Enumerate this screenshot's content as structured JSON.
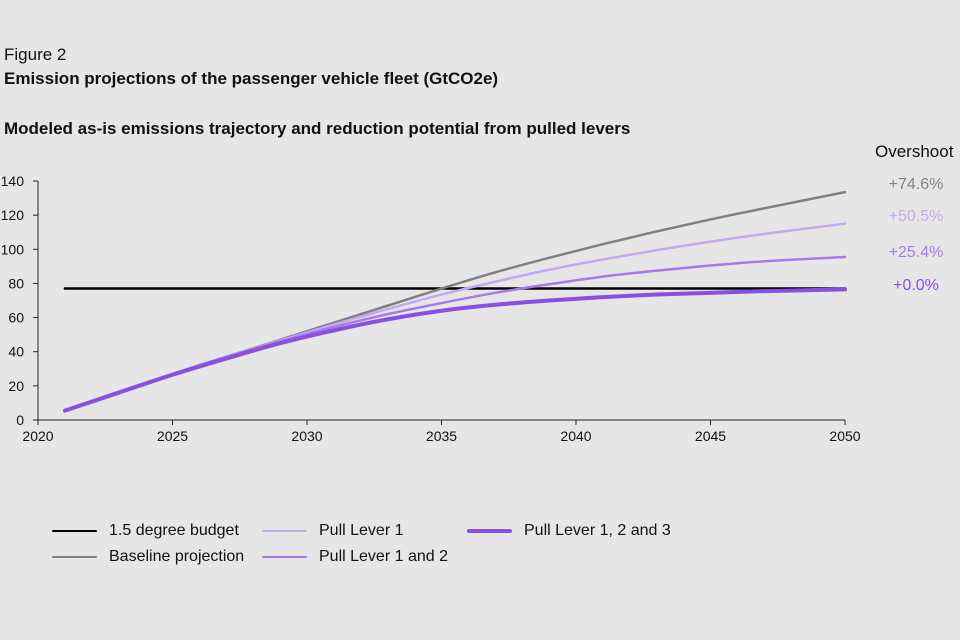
{
  "figure": {
    "label": "Figure 2",
    "title": "Emission projections of the passenger vehicle fleet (GtCO2e)",
    "subtitle": "Modeled as-is emissions trajectory and reduction potential from pulled levers"
  },
  "chart_data": {
    "type": "line",
    "title": "",
    "xlabel": "",
    "ylabel": "",
    "xlim": [
      2020,
      2050
    ],
    "ylim": [
      0,
      140
    ],
    "x_ticks": [
      2020,
      2025,
      2030,
      2035,
      2040,
      2045,
      2050
    ],
    "y_ticks": [
      0,
      20,
      40,
      60,
      80,
      100,
      120,
      140
    ],
    "grid": false,
    "overshoot_header": "Overshoot",
    "series": [
      {
        "name": "1.5 degree budget",
        "color": "#000000",
        "width": 2.5,
        "x": [
          2021,
          2050
        ],
        "y": [
          77,
          77
        ]
      },
      {
        "name": "Baseline projection",
        "color": "#808080",
        "width": 2.5,
        "overshoot": "+74.6%",
        "x": [
          2021,
          2023,
          2025,
          2027,
          2029,
          2031,
          2033,
          2035,
          2037,
          2039,
          2041,
          2043,
          2045,
          2047,
          2050
        ],
        "y": [
          5.5,
          16.5,
          27,
          37,
          47,
          57,
          67,
          77,
          86.5,
          95,
          103,
          110.5,
          117.5,
          124,
          133.5
        ]
      },
      {
        "name": "Pull Lever 1",
        "color": "#c3a8f2",
        "width": 2.5,
        "overshoot": "+50.5%",
        "x": [
          2021,
          2023,
          2025,
          2027,
          2029,
          2031,
          2033,
          2035,
          2037,
          2039,
          2041,
          2043,
          2045,
          2047,
          2050
        ],
        "y": [
          5.5,
          16.5,
          27,
          37,
          46.5,
          56,
          65,
          73.5,
          81,
          88,
          94,
          99.5,
          104.5,
          109,
          115
        ]
      },
      {
        "name": "Pull Lever 1 and 2",
        "color": "#a57ae8",
        "width": 2.5,
        "overshoot": "+25.4%",
        "x": [
          2021,
          2023,
          2025,
          2027,
          2029,
          2031,
          2033,
          2035,
          2037,
          2039,
          2041,
          2043,
          2045,
          2047,
          2050
        ],
        "y": [
          5.5,
          16.5,
          27,
          37,
          46,
          54.5,
          62,
          68.5,
          74.5,
          79.5,
          84,
          87.5,
          90.5,
          93,
          95.5
        ]
      },
      {
        "name": "Pull Lever 1, 2 and 3",
        "color": "#8a4fe0",
        "width": 4,
        "overshoot": "+0.0%",
        "x": [
          2021,
          2023,
          2025,
          2027,
          2029,
          2031,
          2033,
          2035,
          2037,
          2039,
          2041,
          2043,
          2045,
          2047,
          2050
        ],
        "y": [
          5.5,
          16,
          26.5,
          36,
          45,
          52.5,
          59,
          64,
          67.5,
          70,
          72,
          73.5,
          74.5,
          75.5,
          76.5
        ]
      }
    ],
    "legend_position": "bottom"
  }
}
